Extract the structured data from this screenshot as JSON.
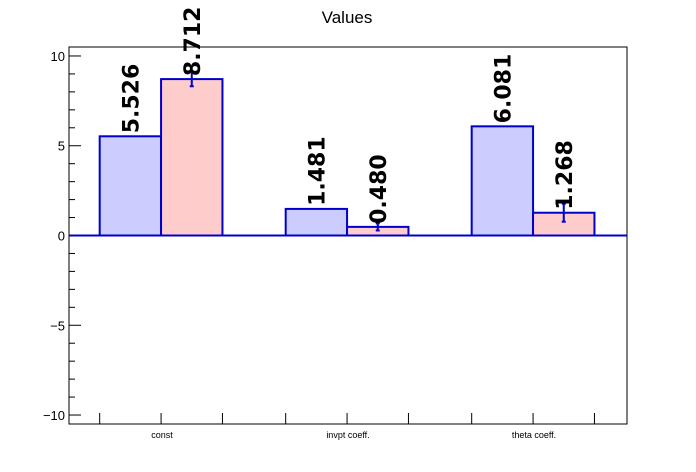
{
  "chart_data": {
    "type": "bar",
    "title": "Values",
    "categories": [
      "const",
      "invpt coeff.",
      "theta coeff."
    ],
    "series": [
      {
        "values": [
          5.526,
          1.481,
          6.081
        ],
        "labels": [
          "5.526",
          "1.481",
          "6.081"
        ],
        "errors": [
          0,
          0,
          0
        ],
        "fill": "#ccccff",
        "stroke": "#0000cc"
      },
      {
        "values": [
          8.712,
          0.48,
          1.268
        ],
        "labels": [
          "8.712",
          "0.480",
          "1.268"
        ],
        "errors": [
          0.4,
          0.2,
          0.5
        ],
        "fill": "#ffcccc",
        "stroke": "#0000cc"
      }
    ],
    "ylim": [
      -10.5,
      10.5
    ],
    "yticks": [
      -10,
      -5,
      0,
      5,
      10
    ],
    "ytick_labels": [
      "−10",
      "−5",
      "0",
      "5",
      "10"
    ],
    "grid": false,
    "legend": "none",
    "axis_color": "#000000",
    "zero_line_color": "#0000cc"
  }
}
